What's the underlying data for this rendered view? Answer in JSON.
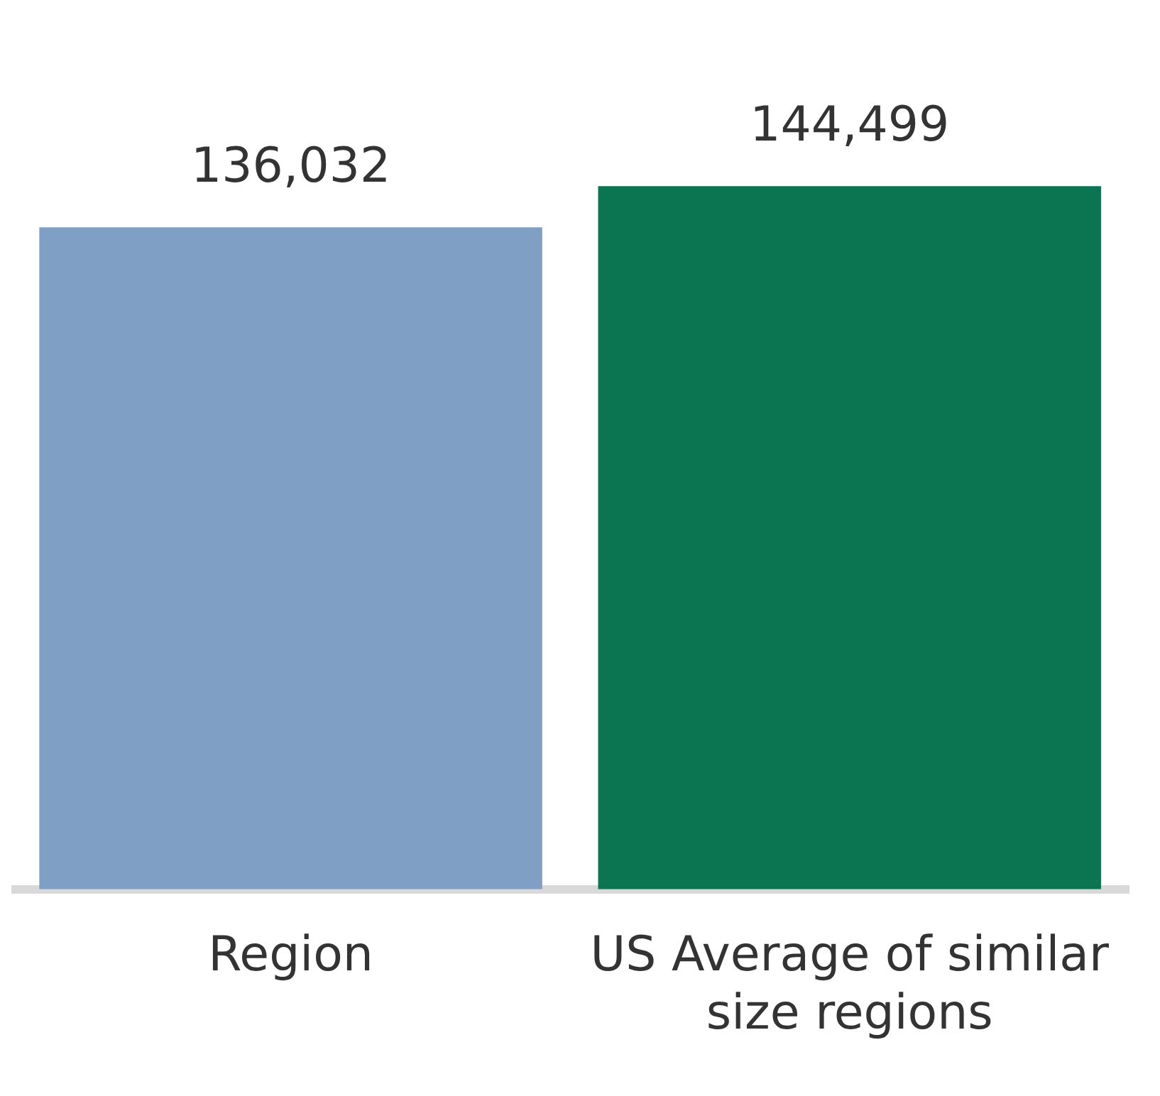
{
  "chart_data": {
    "type": "bar",
    "categories": [
      "Region",
      "US Average of similar size regions"
    ],
    "values": [
      136032,
      144499
    ],
    "colors": [
      "#7f9fc4",
      "#0a7550"
    ],
    "value_labels": [
      "136,032",
      "144,499"
    ],
    "tick_labels": "x",
    "grid": false,
    "legend": false
  }
}
